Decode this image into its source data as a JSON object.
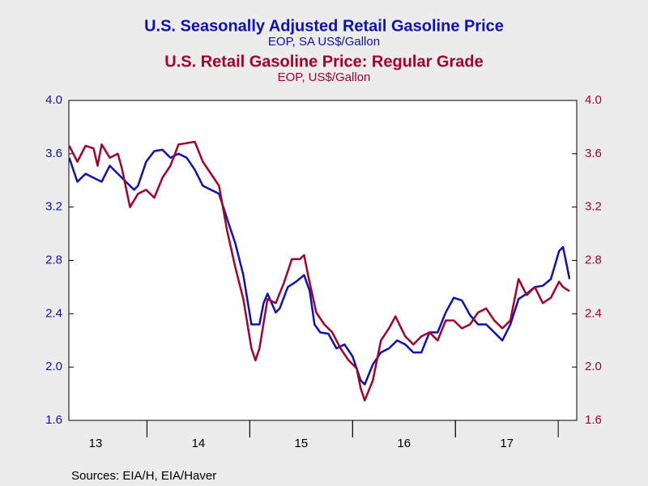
{
  "chart_data": {
    "type": "line",
    "title": "U.S. Seasonally Adjusted Retail Gasoline Price",
    "subtitle": "EOP, SA US$/Gallon",
    "title2": "U.S. Retail Gasoline Price: Regular Grade",
    "subtitle2": "EOP, US$/Gallon",
    "source": "Sources:  EIA/H, EIA/Haver",
    "xlim": [
      2013.24,
      2018.18
    ],
    "xticks": [
      {
        "value": 2013.5,
        "label": "13"
      },
      {
        "value": 2014.5,
        "label": "14"
      },
      {
        "value": 2015.5,
        "label": "15"
      },
      {
        "value": 2016.5,
        "label": "16"
      },
      {
        "value": 2017.5,
        "label": "17"
      }
    ],
    "ylim": [
      1.6,
      4.0
    ],
    "yticks": [
      1.6,
      {
        "value": 2.0,
        "label": "2.0"
      },
      2.4,
      2.8,
      3.2,
      3.6,
      {
        "value": 4.0,
        "label": "4.0"
      }
    ],
    "y2lim": [
      1.6,
      4.0
    ],
    "y2ticks": [
      1.6,
      {
        "value": 2.0,
        "label": "2.0"
      },
      2.4,
      2.8,
      3.2,
      3.6,
      {
        "value": 4.0,
        "label": "4.0"
      }
    ],
    "grid": false,
    "series": [
      {
        "name": "U.S. Seasonally Adjusted Retail Gasoline Price",
        "color": "#1010b8",
        "x": [
          2013.244,
          2013.323,
          2013.402,
          2013.48,
          2013.559,
          2013.638,
          2013.717,
          2013.795,
          2013.874,
          2013.913,
          2013.992,
          2014.071,
          2014.15,
          2014.228,
          2014.307,
          2014.386,
          2014.465,
          2014.543,
          2014.622,
          2014.701,
          2014.78,
          2014.858,
          2014.937,
          2015.016,
          2015.094,
          2015.134,
          2015.173,
          2015.252,
          2015.291,
          2015.37,
          2015.449,
          2015.528,
          2015.583,
          2015.63,
          2015.685,
          2015.764,
          2015.843,
          2015.921,
          2016.0,
          2016.079,
          2016.118,
          2016.197,
          2016.276,
          2016.354,
          2016.433,
          2016.512,
          2016.591,
          2016.669,
          2016.748,
          2016.827,
          2016.906,
          2016.984,
          2017.063,
          2017.142,
          2017.22,
          2017.299,
          2017.378,
          2017.457,
          2017.535,
          2017.614,
          2017.693,
          2017.772,
          2017.85,
          2017.929,
          2018.008,
          2018.047,
          2018.087,
          2018.11
        ],
        "values": [
          3.57,
          3.39,
          3.45,
          3.42,
          3.39,
          3.51,
          3.45,
          3.39,
          3.33,
          3.36,
          3.54,
          3.62,
          3.63,
          3.57,
          3.6,
          3.57,
          3.48,
          3.36,
          3.33,
          3.3,
          3.11,
          2.93,
          2.69,
          2.32,
          2.32,
          2.48,
          2.55,
          2.41,
          2.44,
          2.6,
          2.64,
          2.69,
          2.57,
          2.32,
          2.26,
          2.25,
          2.14,
          2.17,
          2.08,
          1.9,
          1.87,
          2.02,
          2.11,
          2.14,
          2.2,
          2.17,
          2.11,
          2.11,
          2.26,
          2.26,
          2.41,
          2.52,
          2.5,
          2.39,
          2.32,
          2.32,
          2.26,
          2.2,
          2.32,
          2.51,
          2.55,
          2.6,
          2.61,
          2.66,
          2.87,
          2.9,
          2.75,
          2.66
        ]
      },
      {
        "name": "U.S. Retail Gasoline Price: Regular Grade",
        "color": "#a8002c",
        "axis": "y2",
        "x": [
          2013.244,
          2013.323,
          2013.402,
          2013.48,
          2013.52,
          2013.559,
          2013.638,
          2013.717,
          2013.756,
          2013.835,
          2013.913,
          2013.992,
          2014.071,
          2014.15,
          2014.228,
          2014.307,
          2014.386,
          2014.465,
          2014.543,
          2014.622,
          2014.701,
          2014.78,
          2014.858,
          2014.937,
          2015.016,
          2015.055,
          2015.094,
          2015.173,
          2015.252,
          2015.331,
          2015.409,
          2015.488,
          2015.528,
          2015.567,
          2015.646,
          2015.724,
          2015.803,
          2015.882,
          2015.961,
          2016.039,
          2016.079,
          2016.118,
          2016.197,
          2016.276,
          2016.354,
          2016.417,
          2016.512,
          2016.591,
          2016.669,
          2016.748,
          2016.827,
          2016.906,
          2016.984,
          2017.063,
          2017.142,
          2017.22,
          2017.299,
          2017.378,
          2017.457,
          2017.535,
          2017.614,
          2017.693,
          2017.772,
          2017.85,
          2017.929,
          2018.008,
          2018.047,
          2018.11
        ],
        "values": [
          3.66,
          3.54,
          3.66,
          3.64,
          3.51,
          3.67,
          3.57,
          3.6,
          3.49,
          3.2,
          3.3,
          3.33,
          3.27,
          3.42,
          3.51,
          3.67,
          3.68,
          3.69,
          3.54,
          3.45,
          3.36,
          3.02,
          2.75,
          2.51,
          2.14,
          2.05,
          2.14,
          2.51,
          2.48,
          2.63,
          2.81,
          2.81,
          2.84,
          2.69,
          2.41,
          2.32,
          2.26,
          2.14,
          2.05,
          1.99,
          1.84,
          1.75,
          1.9,
          2.2,
          2.29,
          2.38,
          2.23,
          2.17,
          2.23,
          2.26,
          2.2,
          2.35,
          2.35,
          2.29,
          2.32,
          2.41,
          2.44,
          2.35,
          2.29,
          2.35,
          2.66,
          2.54,
          2.6,
          2.48,
          2.52,
          2.64,
          2.6,
          2.57
        ]
      }
    ]
  }
}
